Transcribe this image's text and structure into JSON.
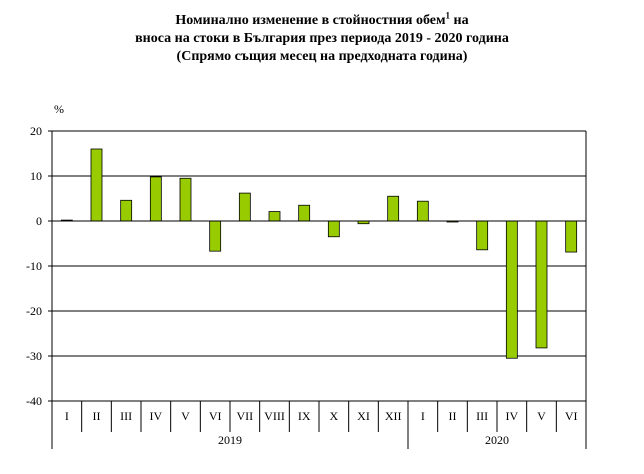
{
  "chart_data": {
    "type": "bar",
    "title_lines": [
      "Номинално изменение в стойностния обем",
      "вноса на стоки в България през периода 2019 - 2020 година",
      "(Спрямо същия месец на предходната година)"
    ],
    "title_superscript": "1",
    "title_line1_suffix": " на",
    "ylabel": "%",
    "ylim": [
      -40,
      20
    ],
    "yticks": [
      20,
      10,
      0,
      -10,
      -20,
      -30,
      -40
    ],
    "grid": true,
    "bar_color": "#99cc00",
    "categories": [
      "I",
      "II",
      "III",
      "IV",
      "V",
      "VI",
      "VII",
      "VIII",
      "IX",
      "X",
      "XI",
      "XII",
      "I",
      "II",
      "III",
      "IV",
      "V",
      "VI"
    ],
    "years": [
      {
        "label": "2019",
        "count": 12
      },
      {
        "label": "2020",
        "count": 6
      }
    ],
    "values": [
      0.2,
      16.0,
      4.6,
      9.8,
      9.5,
      -6.7,
      6.2,
      2.1,
      3.5,
      -3.5,
      -0.6,
      5.5,
      4.4,
      -0.2,
      -6.4,
      -30.5,
      -28.2,
      -6.9
    ]
  }
}
